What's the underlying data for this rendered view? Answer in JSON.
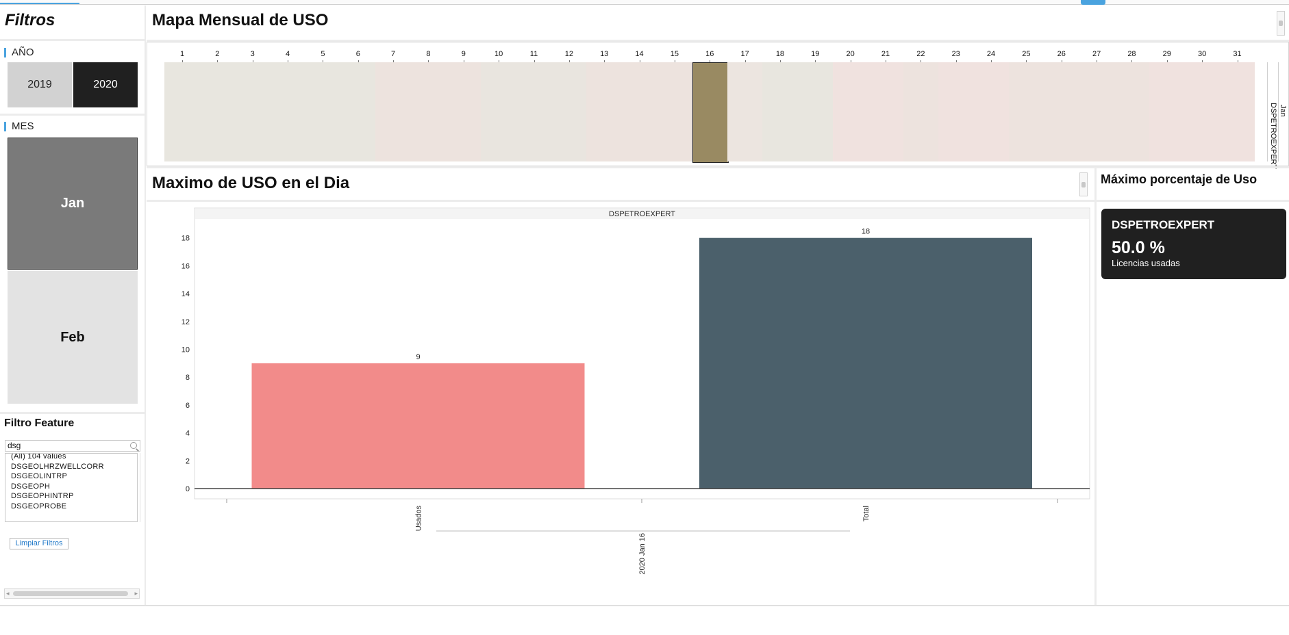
{
  "left": {
    "title": "Filtros",
    "year_label": "AÑO",
    "years": [
      {
        "label": "2019",
        "selected": false
      },
      {
        "label": "2020",
        "selected": true
      }
    ],
    "month_label": "MES",
    "months": [
      {
        "label": "Jan",
        "selected": true
      },
      {
        "label": "Feb",
        "selected": false
      }
    ],
    "feature_filter_title": "Filtro Feature",
    "search_value": "dsg",
    "feature_list": [
      "(All) 104 values",
      "DSGEOLHRZWELLCORR",
      "DSGEOLINTRP",
      "DSGEOPH",
      "DSGEOPHINTRP",
      "DSGEOPROBE"
    ],
    "clear_button": "Limpiar Filtros"
  },
  "map": {
    "title": "Mapa Mensual de USO",
    "days": [
      "1",
      "2",
      "3",
      "4",
      "5",
      "6",
      "7",
      "8",
      "9",
      "10",
      "11",
      "12",
      "13",
      "14",
      "15",
      "16",
      "17",
      "18",
      "19",
      "20",
      "21",
      "22",
      "23",
      "24",
      "25",
      "26",
      "27",
      "28",
      "29",
      "30",
      "31"
    ],
    "selected_day": "16",
    "row_feature": "DSPETROEXPERT",
    "row_month": "Jan",
    "cell_colors": [
      "#e8e6df",
      "#e8e6df",
      "#e8e6df",
      "#e8e6df",
      "#e8e6df",
      "#e8e6df",
      "#ede3de",
      "#ede3de",
      "#ede3de",
      "#e9e5df",
      "#e9e5df",
      "#e9e5df",
      "#ede3de",
      "#ede3de",
      "#ede3de",
      "#998a62",
      "#ece5e0",
      "#e8e6df",
      "#e8e6df",
      "#f0e2df",
      "#f0e2df",
      "#ede3de",
      "#f0e2df",
      "#f0e2df",
      "#ede3de",
      "#ede3de",
      "#ede3de",
      "#ede3de",
      "#f0e2df",
      "#f0e2df",
      "#f0e2df"
    ]
  },
  "max": {
    "title": "Maximo de USO en el Dia",
    "x_group_label": "2020  Jan 16"
  },
  "chart_data": {
    "type": "bar",
    "title": "DSPETROEXPERT",
    "categories": [
      "Usados",
      "Total"
    ],
    "values": [
      9,
      18
    ],
    "colors": [
      "#f28b8a",
      "#4b606b"
    ],
    "xlabel": "2020  Jan 16",
    "ylabel": "",
    "ylim": [
      0,
      20
    ],
    "yticks": [
      0,
      2,
      4,
      6,
      8,
      10,
      12,
      14,
      16,
      18
    ],
    "grid": false
  },
  "kpi": {
    "title": "Máximo porcentaje de Uso",
    "feature": "DSPETROEXPERT",
    "percent": "50.0 %",
    "subtitle": "Licencias usadas"
  }
}
